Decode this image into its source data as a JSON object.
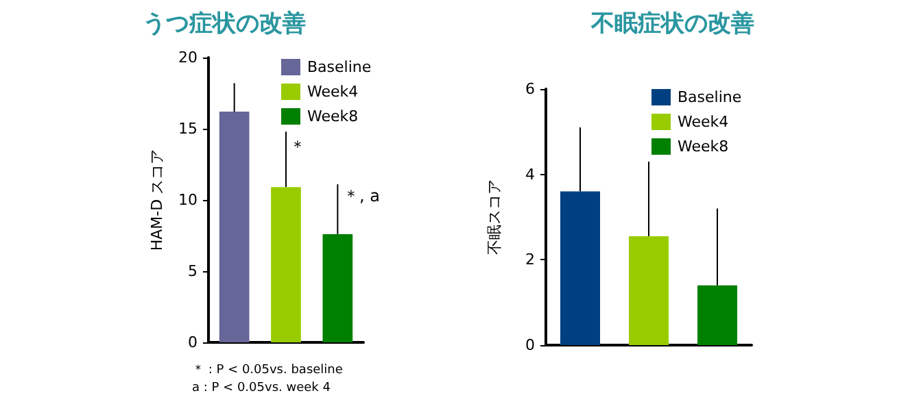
{
  "chart_data": [
    {
      "type": "bar",
      "title": "うつ症状の改善",
      "ylabel": "HAM-D スコア",
      "categories": [
        null,
        null,
        null
      ],
      "series": [
        {
          "name": "Baseline",
          "color": "#666699",
          "values": [
            16.2,
            null,
            null
          ],
          "errors": [
            [
              16.2,
              18.2
            ],
            null,
            null
          ]
        },
        {
          "name": "Week4",
          "color": "#99cc00",
          "values": [
            null,
            10.9,
            null
          ],
          "errors": [
            null,
            [
              10.9,
              14.8
            ],
            null
          ]
        },
        {
          "name": "Week8",
          "color": "#008000",
          "values": [
            null,
            null,
            7.6
          ],
          "errors": [
            null,
            null,
            [
              7.6,
              11.1
            ]
          ]
        }
      ],
      "annotations": [
        "＊",
        "＊, a",
        "＊ : P < 0.05vs. baseline",
        "a : P < 0.05vs. week 4"
      ],
      "ylim": [
        0,
        20
      ],
      "yticks": [
        0,
        5,
        10,
        15,
        20
      ],
      "grid": false,
      "legend": "top right"
    },
    {
      "type": "bar",
      "title": "不眠症状の改善",
      "ylabel": "不眠スコア",
      "categories": [
        null,
        null,
        null
      ],
      "series": [
        {
          "name": "Baseline",
          "color": "#004080",
          "values": [
            3.6,
            null,
            null
          ],
          "errors": [
            [
              3.6,
              5.1
            ],
            null,
            null
          ]
        },
        {
          "name": "Week4",
          "color": "#99cc00",
          "values": [
            null,
            2.55,
            null
          ],
          "errors": [
            null,
            [
              2.55,
              4.3
            ],
            null
          ]
        },
        {
          "name": "Week8",
          "color": "#008000",
          "values": [
            null,
            null,
            1.4
          ],
          "errors": [
            null,
            null,
            [
              1.4,
              3.2
            ]
          ]
        }
      ],
      "ylim": [
        0,
        6
      ],
      "yticks": [
        0,
        2,
        4,
        6
      ],
      "grid": false,
      "legend": "top right"
    }
  ]
}
